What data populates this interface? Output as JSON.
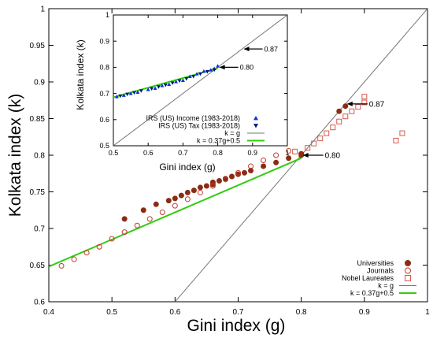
{
  "chart_data": [
    {
      "type": "scatter",
      "xlabel": "Gini index (g)",
      "ylabel": "Kolkata index (k)",
      "xlim": [
        0.4,
        1.0
      ],
      "ylim": [
        0.6,
        1.0
      ],
      "xticks": [
        "0.4",
        "0.5",
        "0.6",
        "0.7",
        "0.8",
        "0.9",
        "1"
      ],
      "yticks": [
        "0.6",
        "0.65",
        "0.7",
        "0.75",
        "0.8",
        "0.85",
        "0.9",
        "0.95",
        "1"
      ],
      "legend_position": "bottom-right",
      "series": [
        {
          "name": "Universities",
          "marker": "filled-circle",
          "color": "#8b2c12",
          "x": [
            0.52,
            0.55,
            0.57,
            0.59,
            0.6,
            0.61,
            0.62,
            0.63,
            0.64,
            0.65,
            0.66,
            0.66,
            0.67,
            0.68,
            0.69,
            0.7,
            0.71,
            0.72,
            0.74,
            0.76,
            0.78,
            0.8,
            0.8,
            0.86,
            0.87
          ],
          "y": [
            0.713,
            0.725,
            0.733,
            0.738,
            0.741,
            0.745,
            0.749,
            0.752,
            0.756,
            0.758,
            0.76,
            0.763,
            0.765,
            0.768,
            0.771,
            0.774,
            0.776,
            0.779,
            0.785,
            0.79,
            0.796,
            0.802,
            0.8,
            0.86,
            0.867
          ]
        },
        {
          "name": "Journals",
          "marker": "open-circle",
          "color": "#c0392b",
          "x": [
            0.42,
            0.44,
            0.46,
            0.48,
            0.5,
            0.52,
            0.54,
            0.56,
            0.58,
            0.6,
            0.62,
            0.64,
            0.66,
            0.68,
            0.7,
            0.72,
            0.74,
            0.76,
            0.78
          ],
          "y": [
            0.649,
            0.658,
            0.667,
            0.675,
            0.686,
            0.695,
            0.704,
            0.713,
            0.722,
            0.731,
            0.74,
            0.749,
            0.758,
            0.767,
            0.776,
            0.785,
            0.793,
            0.8,
            0.806
          ]
        },
        {
          "name": "Nobel Laureates",
          "marker": "open-square",
          "color": "#d65a4a",
          "x": [
            0.79,
            0.81,
            0.82,
            0.83,
            0.84,
            0.85,
            0.86,
            0.87,
            0.88,
            0.89,
            0.9,
            0.9,
            0.95,
            0.96
          ],
          "y": [
            0.805,
            0.81,
            0.816,
            0.823,
            0.83,
            0.838,
            0.846,
            0.853,
            0.86,
            0.866,
            0.872,
            0.88,
            0.82,
            0.83
          ]
        },
        {
          "name": "k = g",
          "marker": "line",
          "color": "#777777",
          "x": [
            0.6,
            1.0
          ],
          "y": [
            0.6,
            1.0
          ]
        },
        {
          "name": "k = 0.37g+0.5",
          "marker": "line",
          "color": "#33cc11",
          "x": [
            0.4,
            0.8
          ],
          "y": [
            0.648,
            0.796
          ]
        }
      ],
      "annotations": [
        {
          "text": "0.87",
          "x": 0.87,
          "y": 0.87
        },
        {
          "text": "0.80",
          "x": 0.8,
          "y": 0.8
        }
      ]
    },
    {
      "type": "scatter",
      "xlabel": "Gini index (g)",
      "ylabel": "Kolkata index (k)",
      "xlim": [
        0.5,
        1.0
      ],
      "ylim": [
        0.5,
        1.0
      ],
      "xticks": [
        "0.5",
        "0.6",
        "0.7",
        "0.8",
        "0.9",
        "1"
      ],
      "yticks": [
        "0.5",
        "0.6",
        "0.7",
        "0.8",
        "0.9",
        "1"
      ],
      "legend_position": "bottom-right",
      "series": [
        {
          "name": "IRS (US)  Income (1983-2018)",
          "marker": "filled-triangle-up",
          "color": "#1030e0",
          "x": [
            0.51,
            0.53,
            0.55,
            0.57,
            0.6,
            0.62,
            0.64,
            0.66,
            0.68,
            0.7,
            0.72,
            0.74,
            0.76,
            0.78,
            0.79,
            0.8
          ],
          "y": [
            0.688,
            0.693,
            0.7,
            0.705,
            0.715,
            0.72,
            0.73,
            0.735,
            0.745,
            0.75,
            0.765,
            0.775,
            0.785,
            0.79,
            0.795,
            0.805
          ]
        },
        {
          "name": "IRS (US) Tax (1983-2018)",
          "marker": "filled-triangle-down",
          "color": "#0a1870",
          "x": [
            0.52,
            0.54,
            0.56,
            0.58,
            0.61,
            0.63,
            0.65,
            0.67,
            0.69,
            0.71,
            0.73,
            0.75,
            0.77,
            0.79
          ],
          "y": [
            0.69,
            0.697,
            0.703,
            0.71,
            0.718,
            0.725,
            0.732,
            0.74,
            0.748,
            0.756,
            0.765,
            0.775,
            0.783,
            0.79
          ]
        },
        {
          "name": "k = g",
          "marker": "line",
          "color": "#777777",
          "x": [
            0.5,
            1.0
          ],
          "y": [
            0.5,
            1.0
          ]
        },
        {
          "name": "k = 0.37g+0.5",
          "marker": "line",
          "color": "#33cc11",
          "x": [
            0.5,
            0.8
          ],
          "y": [
            0.685,
            0.796
          ]
        }
      ],
      "annotations": [
        {
          "text": "0.87",
          "x": 0.87,
          "y": 0.87
        },
        {
          "text": "0.80",
          "x": 0.8,
          "y": 0.8
        }
      ]
    }
  ]
}
